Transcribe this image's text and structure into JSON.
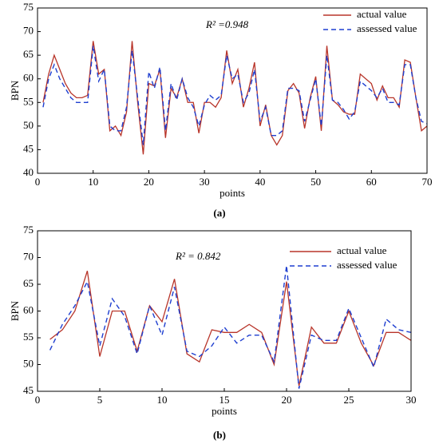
{
  "chart_data": [
    {
      "type": "line",
      "caption": "(a)",
      "ylabel": "BPN",
      "xlabel": "points",
      "annotation": "R² =0.948",
      "xlim": [
        0,
        70
      ],
      "xticks": [
        0,
        10,
        20,
        30,
        40,
        50,
        60,
        70
      ],
      "ylim": [
        40,
        75
      ],
      "yticks": [
        40,
        45,
        50,
        55,
        60,
        65,
        70,
        75
      ],
      "legend": "upper right",
      "x": [
        1,
        2,
        3,
        4,
        5,
        6,
        7,
        8,
        9,
        10,
        11,
        12,
        13,
        14,
        15,
        16,
        17,
        18,
        19,
        20,
        21,
        22,
        23,
        24,
        25,
        26,
        27,
        28,
        29,
        30,
        31,
        32,
        33,
        34,
        35,
        36,
        37,
        38,
        39,
        40,
        41,
        42,
        43,
        44,
        45,
        46,
        47,
        48,
        49,
        50,
        51,
        52,
        53,
        54,
        55,
        56,
        57,
        58,
        59,
        60,
        61,
        62,
        63,
        64,
        65,
        66,
        67,
        68,
        69,
        70
      ],
      "series": [
        {
          "name": "actual value",
          "color": "#b8352a",
          "dash": false,
          "values": [
            55,
            61,
            65,
            62,
            59,
            57,
            56,
            56,
            56.5,
            68,
            61,
            62,
            49,
            50,
            48,
            53,
            68,
            55,
            44,
            59,
            58.5,
            62,
            47.5,
            58,
            56,
            60,
            55,
            55,
            48.5,
            55,
            55,
            54,
            56,
            66,
            59,
            62,
            54,
            58,
            63.5,
            50,
            54.5,
            48,
            46,
            48,
            57.5,
            59,
            57,
            49.5,
            56,
            60.5,
            49,
            67,
            55.5,
            54.5,
            53,
            52.5,
            52.5,
            61,
            60,
            59,
            55.5,
            58.5,
            56,
            56,
            54,
            64,
            63.5,
            56,
            49,
            50
          ]
        },
        {
          "name": "assessed value",
          "color": "#1f3fd0",
          "dash": true,
          "values": [
            54,
            60,
            63,
            60,
            58,
            56,
            55,
            55,
            55,
            67,
            59.5,
            62,
            50,
            49,
            49,
            54,
            66,
            56,
            46,
            61.5,
            58,
            62.5,
            49,
            59,
            55.5,
            60,
            56,
            54,
            50,
            54.5,
            56.5,
            55.5,
            56.5,
            65,
            60,
            61,
            55,
            57,
            62,
            51,
            54,
            48,
            48,
            49,
            58,
            58,
            57.5,
            51,
            55.5,
            60,
            50,
            65,
            55.5,
            55,
            53.5,
            51.5,
            53,
            59.5,
            58.5,
            57.5,
            56,
            58,
            55,
            55,
            54.5,
            63,
            63,
            56,
            51,
            50.5
          ]
        }
      ]
    },
    {
      "type": "line",
      "caption": "(b)",
      "ylabel": "BPN",
      "xlabel": "points",
      "annotation": "R² = 0.842",
      "xlim": [
        0,
        30
      ],
      "xticks": [
        0,
        5,
        10,
        15,
        20,
        25,
        30
      ],
      "ylim": [
        45,
        75
      ],
      "yticks": [
        45,
        50,
        55,
        60,
        65,
        70,
        75
      ],
      "legend": "upper right",
      "x": [
        1,
        2,
        3,
        4,
        5,
        6,
        7,
        8,
        9,
        10,
        11,
        12,
        13,
        14,
        15,
        16,
        17,
        18,
        19,
        20,
        21,
        22,
        23,
        24,
        25,
        26,
        27,
        28,
        29,
        30
      ],
      "series": [
        {
          "name": "actual value",
          "color": "#b8352a",
          "dash": false,
          "values": [
            54.7,
            56.5,
            60,
            67.5,
            51.5,
            60,
            60,
            52.5,
            61,
            58,
            66,
            52,
            50.5,
            56.5,
            56,
            56,
            57.5,
            56,
            50,
            65.5,
            46,
            57,
            54,
            54,
            60,
            54,
            49.8,
            56,
            56,
            54.5
          ]
        },
        {
          "name": "assessed value",
          "color": "#1f3fd0",
          "dash": true,
          "values": [
            52.7,
            57.5,
            61,
            65.5,
            53.5,
            62.3,
            59,
            52,
            61,
            55.5,
            64.5,
            52.5,
            51.5,
            53.5,
            57,
            54,
            55.5,
            55.5,
            50.5,
            68.5,
            45.5,
            55.5,
            54.5,
            54.5,
            60.5,
            55,
            49.5,
            58.5,
            56.5,
            56
          ]
        }
      ]
    }
  ]
}
